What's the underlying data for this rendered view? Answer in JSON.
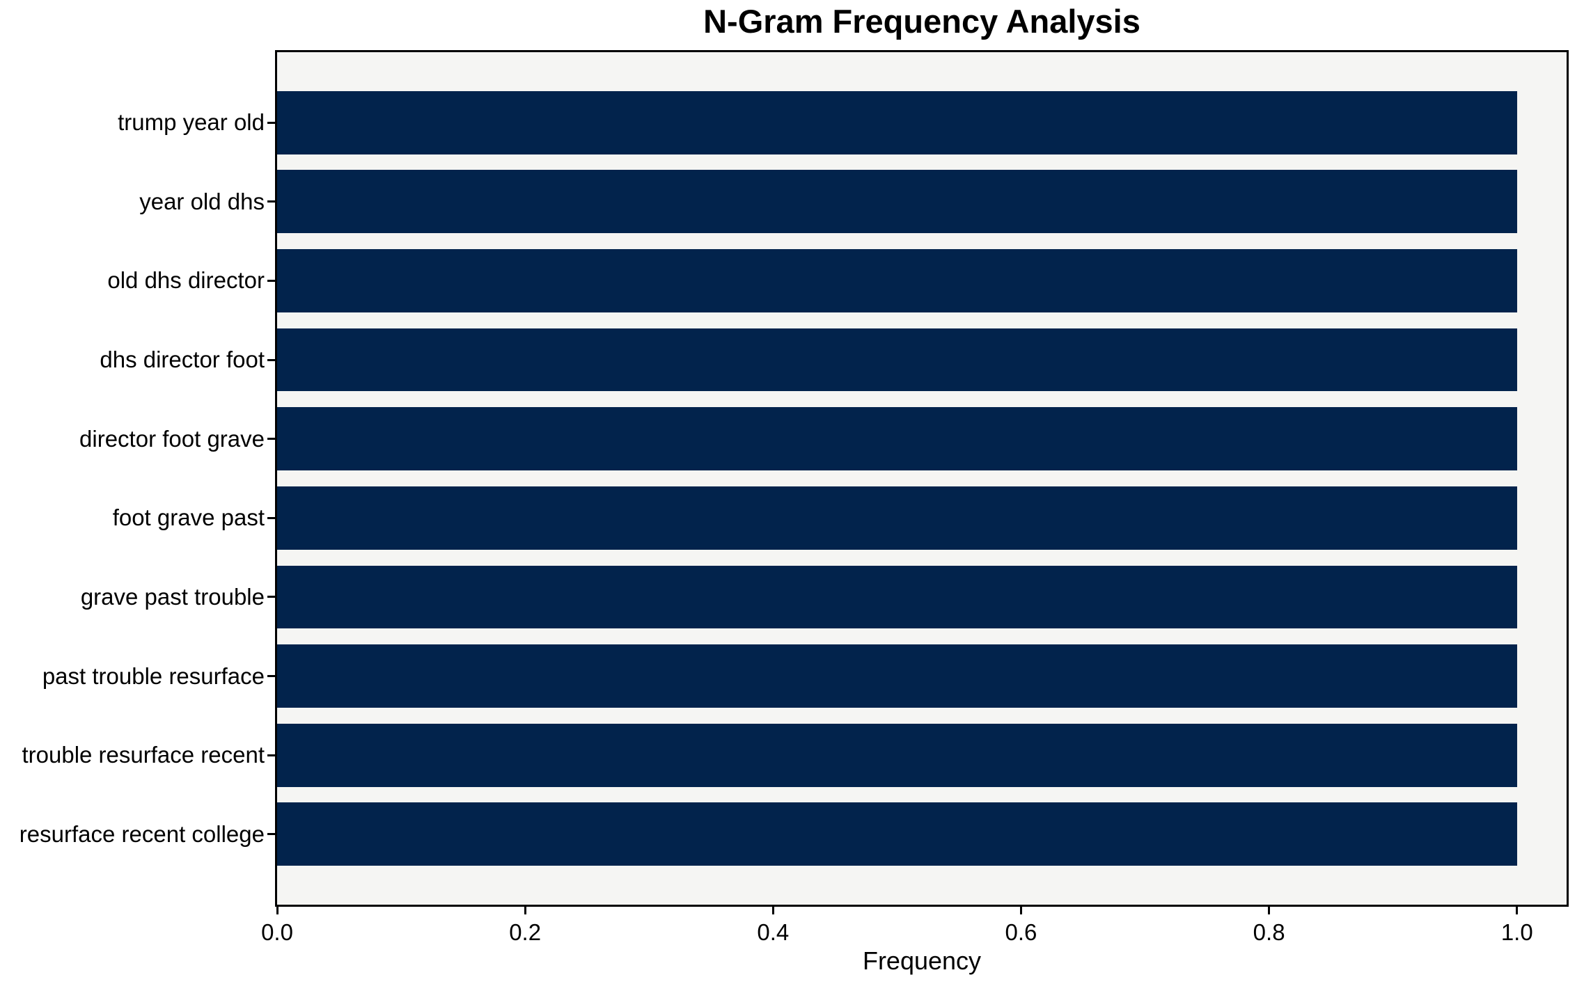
{
  "chart_data": {
    "type": "bar",
    "orientation": "horizontal",
    "title": "N-Gram Frequency Analysis",
    "xlabel": "Frequency",
    "ylabel": "",
    "categories": [
      "trump year old",
      "year old dhs",
      "old dhs director",
      "dhs director foot",
      "director foot grave",
      "foot grave past",
      "grave past trouble",
      "past trouble resurface",
      "trouble resurface recent",
      "resurface recent college"
    ],
    "values": [
      1.0,
      1.0,
      1.0,
      1.0,
      1.0,
      1.0,
      1.0,
      1.0,
      1.0,
      1.0
    ],
    "xlim": [
      0,
      1.04
    ],
    "xticks": [
      0.0,
      0.2,
      0.4,
      0.6,
      0.8,
      1.0
    ],
    "xtick_labels": [
      "0.0",
      "0.2",
      "0.4",
      "0.6",
      "0.8",
      "1.0"
    ],
    "bar_height_fraction": 0.8,
    "bar_color": "#02234c",
    "plot_bg": "#f5f5f3",
    "figure_bg": "#ffffff",
    "grid": false,
    "legend": null
  }
}
